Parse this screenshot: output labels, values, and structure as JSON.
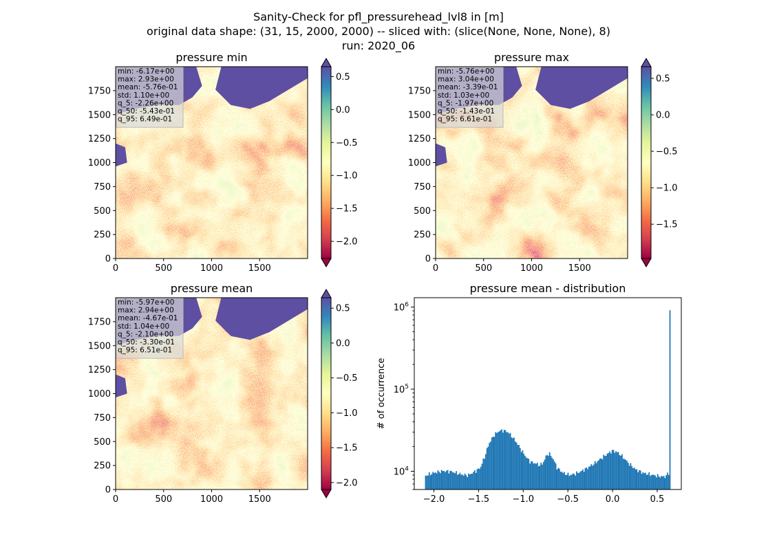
{
  "suptitle": {
    "line1": "Sanity-Check for pfl_pressurehead_lvl8 in [m]",
    "line2": "original data shape: (31, 15, 2000, 2000) -- sliced with: (slice(None, None, None), 8)",
    "line3": "run: 2020_06"
  },
  "colormap": {
    "name": "Spectral",
    "stops": [
      "#9e0142",
      "#d53e4f",
      "#f46d43",
      "#fdae61",
      "#fee08b",
      "#ffffbf",
      "#e6f598",
      "#abdda4",
      "#66c2a5",
      "#3288bd",
      "#5e4fa2"
    ]
  },
  "chart_data": [
    {
      "type": "heatmap",
      "title": "pressure min",
      "xlim": [
        0,
        2000
      ],
      "ylim": [
        0,
        2000
      ],
      "x_ticks": [
        0,
        500,
        1000,
        1500
      ],
      "y_ticks": [
        0,
        250,
        500,
        750,
        1000,
        1250,
        1500,
        1750
      ],
      "colorbar": {
        "vmin": -2.26,
        "vmax": 0.65,
        "ticks": [
          -2.0,
          -1.5,
          -1.0,
          -0.5,
          0.0,
          0.5
        ],
        "tick_labels": [
          "−2.0",
          "−1.5",
          "−1.0",
          "−0.5",
          "0.0",
          "0.5"
        ]
      },
      "stats": [
        "min: -6.17e+00",
        "max: 2.93e+00",
        "mean: -5.76e-01",
        "std: 1.10e+00",
        "q_5: -2.26e+00",
        "q_50: -5.43e-01",
        "q_95: 6.49e-01"
      ]
    },
    {
      "type": "heatmap",
      "title": "pressure max",
      "xlim": [
        0,
        2000
      ],
      "ylim": [
        0,
        2000
      ],
      "x_ticks": [
        0,
        500,
        1000,
        1500
      ],
      "y_ticks": [
        0,
        250,
        500,
        750,
        1000,
        1250,
        1500,
        1750
      ],
      "colorbar": {
        "vmin": -1.97,
        "vmax": 0.66,
        "ticks": [
          -1.5,
          -1.0,
          -0.5,
          0.0,
          0.5
        ],
        "tick_labels": [
          "−1.5",
          "−1.0",
          "−0.5",
          "0.0",
          "0.5"
        ]
      },
      "stats": [
        "min: -5.76e+00",
        "max: 3.04e+00",
        "mean: -3.39e-01",
        "std: 1.03e+00",
        "q_5: -1.97e+00",
        "q_50: -1.43e-01",
        "q_95: 6.61e-01"
      ]
    },
    {
      "type": "heatmap",
      "title": "pressure mean",
      "xlim": [
        0,
        2000
      ],
      "ylim": [
        0,
        2000
      ],
      "x_ticks": [
        0,
        500,
        1000,
        1500
      ],
      "y_ticks": [
        0,
        250,
        500,
        750,
        1000,
        1250,
        1500,
        1750
      ],
      "colorbar": {
        "vmin": -2.1,
        "vmax": 0.65,
        "ticks": [
          -2.0,
          -1.5,
          -1.0,
          -0.5,
          0.0,
          0.5
        ],
        "tick_labels": [
          "−2.0",
          "−1.5",
          "−1.0",
          "−0.5",
          "0.0",
          "0.5"
        ]
      },
      "stats": [
        "min: -5.97e+00",
        "max: 2.94e+00",
        "mean: -4.67e-01",
        "std: 1.04e+00",
        "q_5: -2.10e+00",
        "q_50: -3.30e-01",
        "q_95: 6.51e-01"
      ]
    },
    {
      "type": "bar",
      "title": "pressure mean - distribution",
      "ylabel": "# of occurrence",
      "xlabel": "",
      "yscale": "log",
      "color": "#1f77b4",
      "xlim": [
        -2.22,
        0.77
      ],
      "ylim": [
        6000,
        1300000
      ],
      "x_ticks": [
        -2.0,
        -1.5,
        -1.0,
        -0.5,
        0.0,
        0.5
      ],
      "x_tick_labels": [
        "−2.0",
        "−1.5",
        "−1.0",
        "−0.5",
        "0.0",
        "0.5"
      ],
      "y_ticks": [
        10000,
        100000,
        1000000
      ],
      "y_tick_labels": [
        "10^4",
        "10^5",
        "10^6"
      ],
      "bin_range": [
        -2.1,
        0.65
      ],
      "bin_count": 200,
      "profile": [
        [
          -2.1,
          8800
        ],
        [
          -2.05,
          9200
        ],
        [
          -2.0,
          9600
        ],
        [
          -1.9,
          10100
        ],
        [
          -1.8,
          9900
        ],
        [
          -1.7,
          9200
        ],
        [
          -1.62,
          8900
        ],
        [
          -1.55,
          9800
        ],
        [
          -1.48,
          11000
        ],
        [
          -1.43,
          15000
        ],
        [
          -1.38,
          22000
        ],
        [
          -1.32,
          28000
        ],
        [
          -1.27,
          31000
        ],
        [
          -1.22,
          31500
        ],
        [
          -1.17,
          30000
        ],
        [
          -1.12,
          26000
        ],
        [
          -1.07,
          22000
        ],
        [
          -1.02,
          18000
        ],
        [
          -0.97,
          15000
        ],
        [
          -0.92,
          13000
        ],
        [
          -0.86,
          12500
        ],
        [
          -0.82,
          11800
        ],
        [
          -0.78,
          12500
        ],
        [
          -0.74,
          15500
        ],
        [
          -0.71,
          16500
        ],
        [
          -0.67,
          14500
        ],
        [
          -0.62,
          11000
        ],
        [
          -0.55,
          9500
        ],
        [
          -0.48,
          9000
        ],
        [
          -0.42,
          9300
        ],
        [
          -0.35,
          10000
        ],
        [
          -0.28,
          11000
        ],
        [
          -0.2,
          12500
        ],
        [
          -0.12,
          14500
        ],
        [
          -0.05,
          16500
        ],
        [
          0.0,
          17800
        ],
        [
          0.05,
          17200
        ],
        [
          0.1,
          15500
        ],
        [
          0.18,
          12500
        ],
        [
          0.26,
          10500
        ],
        [
          0.35,
          9500
        ],
        [
          0.45,
          9000
        ],
        [
          0.55,
          8600
        ],
        [
          0.6,
          8700
        ],
        [
          0.62,
          9500
        ]
      ],
      "spikes": [
        [
          0.638,
          36000
        ],
        [
          0.65,
          900000
        ]
      ]
    }
  ]
}
